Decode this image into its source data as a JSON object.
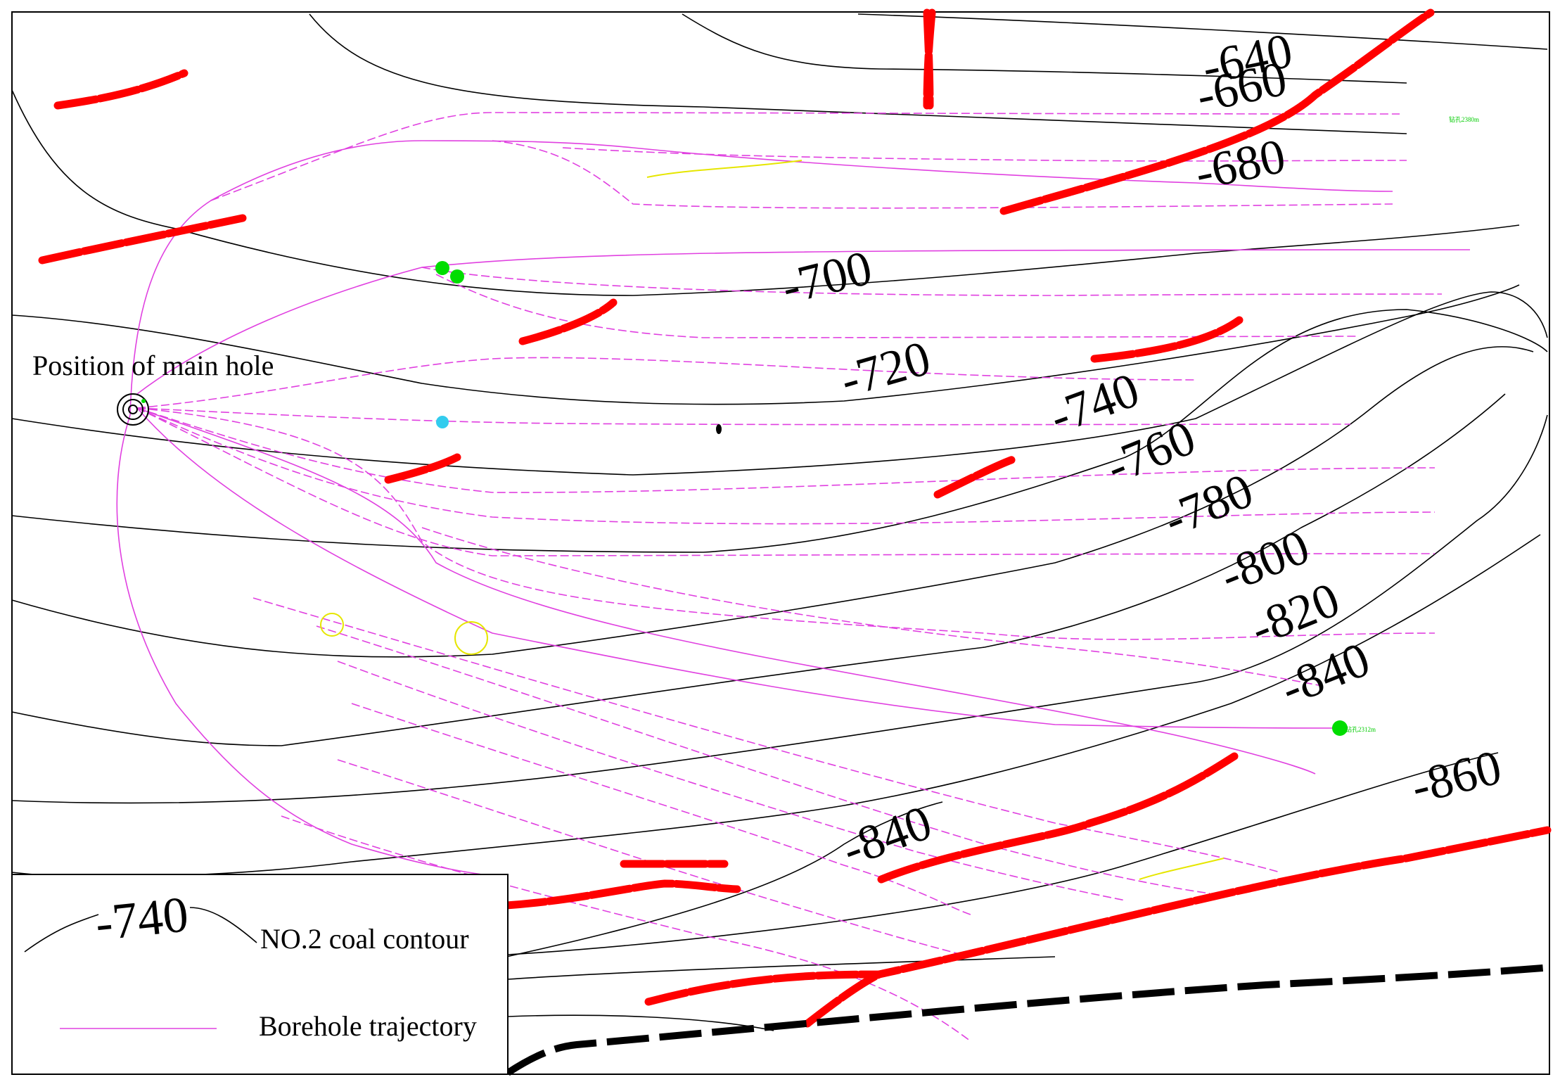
{
  "map": {
    "contour_labels": [
      "-640",
      "-660",
      "-680",
      "-700",
      "-720",
      "-740",
      "-760",
      "-780",
      "-800",
      "-820",
      "-840",
      "-840",
      "-860"
    ],
    "main_hole_label": "Position of main hole",
    "legend": {
      "contour_sample_value": "-740",
      "contour_label": "NO.2 coal contour",
      "trajectory_label": "Borehole trajectory"
    },
    "small_tags": [
      "钻孔2380m",
      "钻孔2312m"
    ],
    "colors": {
      "contour": "#000000",
      "borehole": "#e040e0",
      "fault": "#ff0000",
      "boundary": "#000000",
      "marker_green": "#00dd00",
      "marker_cyan": "#33ccee",
      "marker_yellow": "#e6e600"
    }
  }
}
